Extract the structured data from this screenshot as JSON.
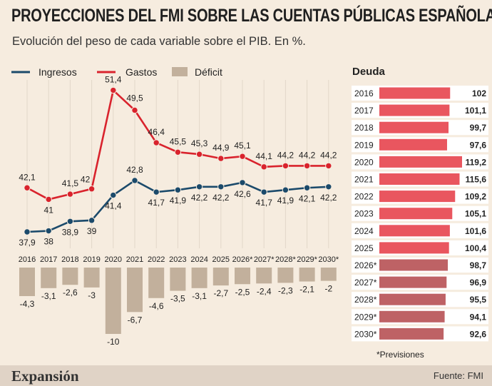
{
  "header": {
    "title": "PROYECCIONES DEL FMI SOBRE LAS CUENTAS PÚBLICAS ESPAÑOLAS",
    "subtitle": "Evolución del peso de cada variable sobre el PIB. En %."
  },
  "colors": {
    "ingresos": "#1b4a6b",
    "gastos": "#d9232d",
    "deficit": "#c2b09c",
    "debt_actual": "#e9565f",
    "debt_forecast": "#be6265",
    "debt_row_bg": "#ffffff"
  },
  "chart_data": [
    {
      "type": "line",
      "categories": [
        "2016",
        "2017",
        "2018",
        "2019",
        "2020",
        "2021",
        "2022",
        "2023",
        "2024",
        "2025",
        "2026*",
        "2027*",
        "2028*",
        "2029*",
        "2030*"
      ],
      "series": [
        {
          "name": "Ingresos",
          "values": [
            37.9,
            38,
            38.9,
            39,
            41.4,
            42.8,
            41.7,
            41.9,
            42.2,
            42.2,
            42.6,
            41.7,
            41.9,
            42.1,
            42.2
          ]
        },
        {
          "name": "Gastos",
          "values": [
            42.1,
            41,
            41.5,
            42,
            51.4,
            49.5,
            46.4,
            45.5,
            45.3,
            44.9,
            45.1,
            44.1,
            44.2,
            44.2,
            44.2
          ]
        }
      ],
      "value_labels": {
        "Ingresos": [
          "37,9",
          "38",
          "38,9",
          "39",
          "41,4",
          "42,8",
          "41,7",
          "41,9",
          "42,2",
          "42,2",
          "42,6",
          "41,7",
          "41,9",
          "42,1",
          "42,2"
        ],
        "Gastos": [
          "42,1",
          "41",
          "41,5",
          "42",
          "51,4",
          "49,5",
          "46,4",
          "45,5",
          "45,3",
          "44,9",
          "45,1",
          "44,1",
          "44,2",
          "44,2",
          "44,2"
        ]
      },
      "legend": [
        "Ingresos",
        "Gastos",
        "Déficit"
      ],
      "legend_placement": "top-left"
    },
    {
      "type": "bar",
      "name": "Déficit",
      "categories": [
        "2016",
        "2017",
        "2018",
        "2019",
        "2020",
        "2021",
        "2022",
        "2023",
        "2024",
        "2025",
        "2026*",
        "2027*",
        "2028*",
        "2029*",
        "2030*"
      ],
      "values": [
        -4.3,
        -3.1,
        -2.6,
        -3,
        -10,
        -6.7,
        -4.6,
        -3.5,
        -3.1,
        -2.7,
        -2.5,
        -2.4,
        -2.3,
        -2.1,
        -2
      ],
      "value_labels": [
        "-4,3",
        "-3,1",
        "-2,6",
        "-3",
        "-10",
        "-6,7",
        "-4,6",
        "-3,5",
        "-3,1",
        "-2,7",
        "-2,5",
        "-2,4",
        "-2,3",
        "-2,1",
        "-2"
      ]
    },
    {
      "type": "bar",
      "orientation": "horizontal",
      "title": "Deuda",
      "categories": [
        "2016",
        "2017",
        "2018",
        "2019",
        "2020",
        "2021",
        "2022",
        "2023",
        "2024",
        "2025",
        "2026*",
        "2027*",
        "2028*",
        "2029*",
        "2030*"
      ],
      "values": [
        102,
        101.1,
        99.7,
        97.6,
        119.2,
        115.6,
        109.2,
        105.1,
        101.6,
        100.4,
        98.7,
        96.9,
        95.5,
        94.1,
        92.6
      ],
      "value_labels": [
        "102",
        "101,1",
        "99,7",
        "97,6",
        "119,2",
        "115,6",
        "109,2",
        "105,1",
        "101,6",
        "100,4",
        "98,7",
        "96,9",
        "95,5",
        "94,1",
        "92,6"
      ],
      "forecast_from": "2026*"
    }
  ],
  "notes": {
    "forecast": "*Previsiones"
  },
  "footer": {
    "brand": "Expansión",
    "source": "Fuente: FMI"
  }
}
